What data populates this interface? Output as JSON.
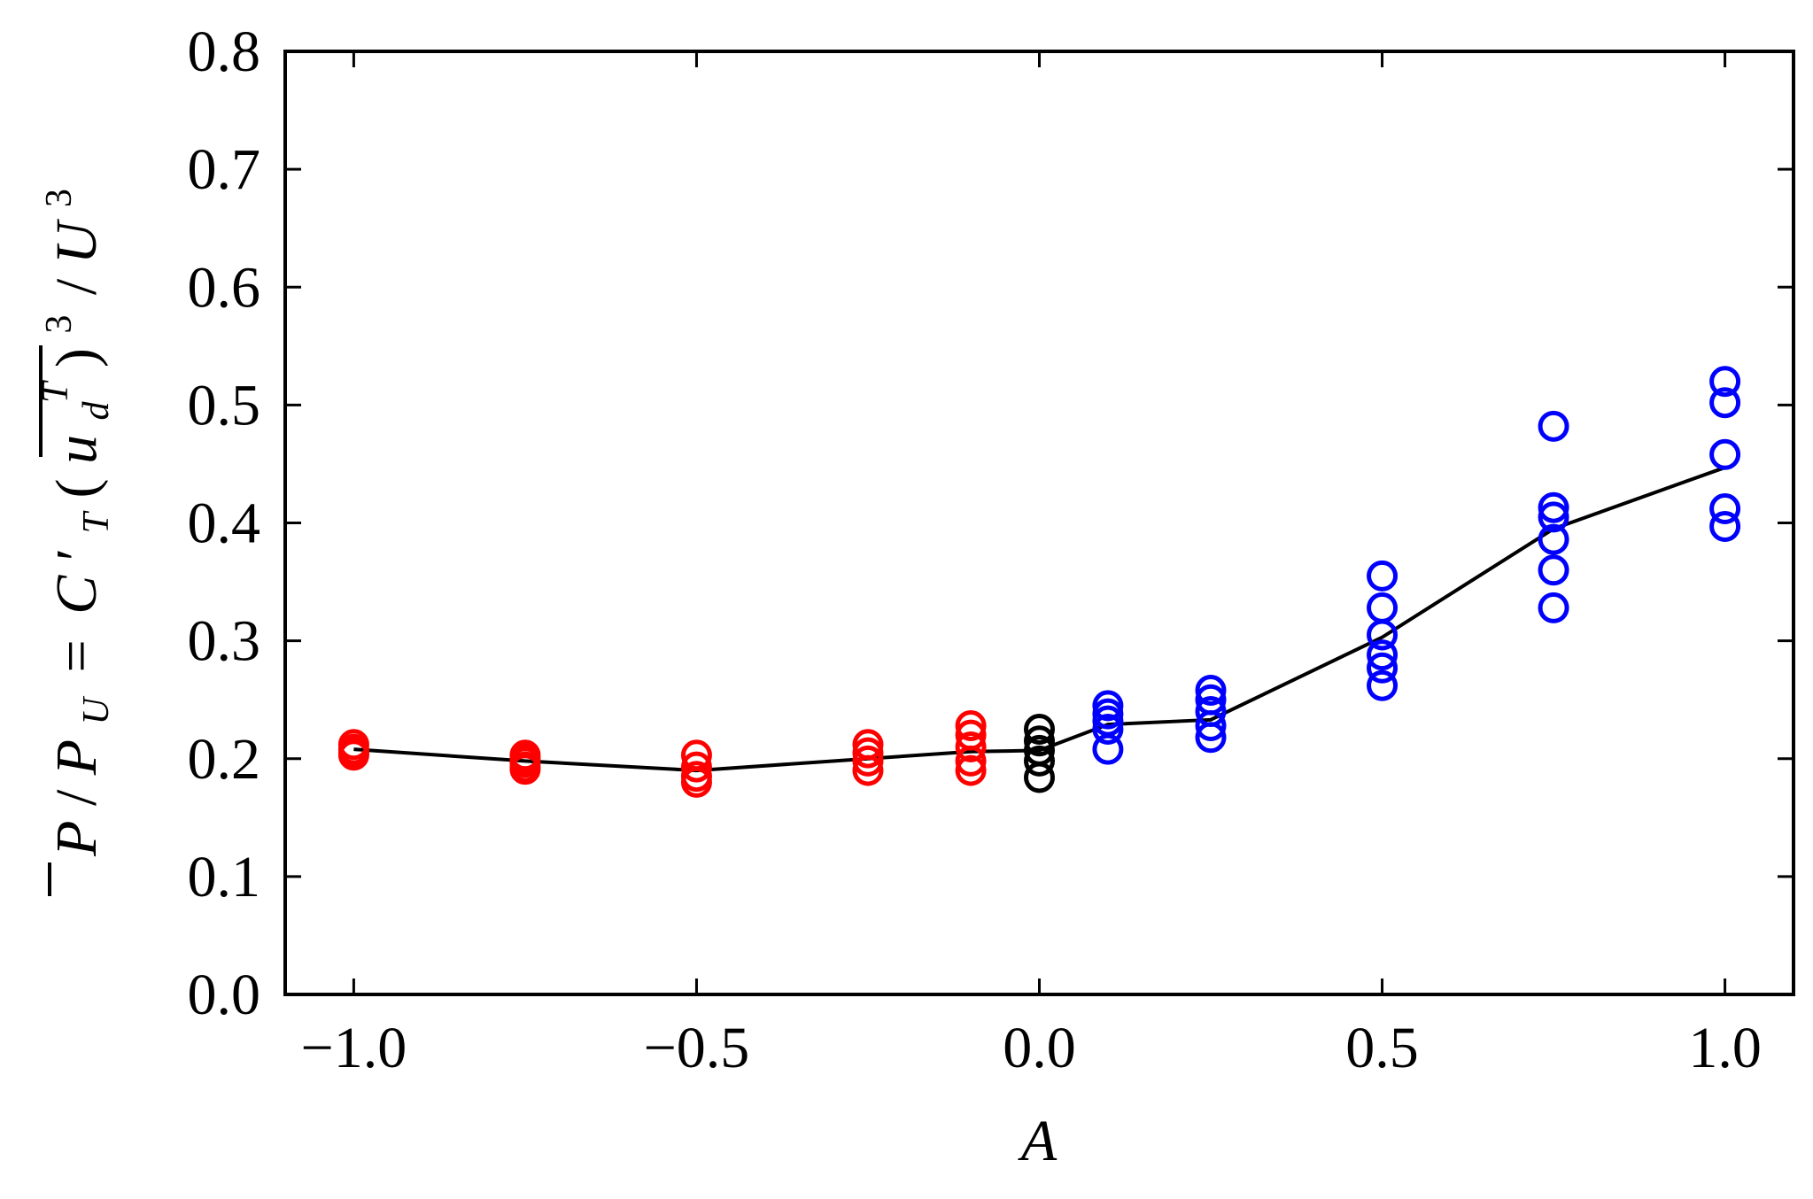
{
  "chart_data": {
    "type": "scatter",
    "title": "",
    "xlabel": "A",
    "ylabel": "P̄ / P_U = C′_T (u_d^T)³ / U³",
    "ylabel_parts": {
      "p": "P",
      "slash1": "/",
      "pu": "P",
      "pu_sub": "U",
      "equals": "=",
      "ct": "C",
      "prime": "′",
      "ct_sub": "T",
      "paren_open": "(",
      "u": "u",
      "u_sub": "d",
      "u_sup": "T",
      "paren_close": ")",
      "cube1": "3",
      "slash2": "/",
      "U": "U",
      "cube2": "3"
    },
    "xlim": [
      -1.1,
      1.1
    ],
    "ylim": [
      0.0,
      0.8
    ],
    "xticks": [
      -1.0,
      -0.5,
      0.0,
      0.5,
      1.0
    ],
    "xtick_labels": [
      "−1.0",
      "−0.5",
      "0.0",
      "0.5",
      "1.0"
    ],
    "yticks": [
      0.0,
      0.1,
      0.2,
      0.3,
      0.4,
      0.5,
      0.6,
      0.7,
      0.8
    ],
    "ytick_labels": [
      "0.0",
      "0.1",
      "0.2",
      "0.3",
      "0.4",
      "0.5",
      "0.6",
      "0.7",
      "0.8"
    ],
    "grid": false,
    "legend": "none",
    "colors": {
      "negative": "#ff0000",
      "zero": "#000000",
      "positive": "#0000ff",
      "line": "#000000"
    },
    "series": [
      {
        "marker": "open-circle",
        "color": "#ff0000",
        "points": [
          [
            -1.0,
            0.212
          ],
          [
            -1.0,
            0.208
          ],
          [
            -1.0,
            0.205
          ],
          [
            -1.0,
            0.203
          ],
          [
            -0.75,
            0.203
          ],
          [
            -0.75,
            0.2
          ],
          [
            -0.75,
            0.197
          ],
          [
            -0.75,
            0.193
          ],
          [
            -0.75,
            0.191
          ],
          [
            -0.5,
            0.203
          ],
          [
            -0.5,
            0.193
          ],
          [
            -0.5,
            0.185
          ],
          [
            -0.5,
            0.18
          ],
          [
            -0.25,
            0.212
          ],
          [
            -0.25,
            0.205
          ],
          [
            -0.25,
            0.198
          ],
          [
            -0.25,
            0.19
          ],
          [
            -0.1,
            0.228
          ],
          [
            -0.1,
            0.22
          ],
          [
            -0.1,
            0.21
          ],
          [
            -0.1,
            0.198
          ],
          [
            -0.1,
            0.19
          ]
        ]
      },
      {
        "marker": "open-circle",
        "color": "#000000",
        "points": [
          [
            0.0,
            0.225
          ],
          [
            0.0,
            0.215
          ],
          [
            0.0,
            0.207
          ],
          [
            0.0,
            0.198
          ],
          [
            0.0,
            0.184
          ]
        ]
      },
      {
        "marker": "open-circle",
        "color": "#0000ff",
        "points": [
          [
            0.1,
            0.245
          ],
          [
            0.1,
            0.238
          ],
          [
            0.1,
            0.232
          ],
          [
            0.1,
            0.225
          ],
          [
            0.1,
            0.208
          ],
          [
            0.25,
            0.258
          ],
          [
            0.25,
            0.25
          ],
          [
            0.25,
            0.24
          ],
          [
            0.25,
            0.228
          ],
          [
            0.25,
            0.218
          ],
          [
            0.5,
            0.355
          ],
          [
            0.5,
            0.328
          ],
          [
            0.5,
            0.305
          ],
          [
            0.5,
            0.288
          ],
          [
            0.5,
            0.277
          ],
          [
            0.5,
            0.262
          ],
          [
            0.75,
            0.482
          ],
          [
            0.75,
            0.413
          ],
          [
            0.75,
            0.405
          ],
          [
            0.75,
            0.386
          ],
          [
            0.75,
            0.36
          ],
          [
            0.75,
            0.328
          ],
          [
            1.0,
            0.52
          ],
          [
            1.0,
            0.502
          ],
          [
            1.0,
            0.458
          ],
          [
            1.0,
            0.412
          ],
          [
            1.0,
            0.397
          ]
        ]
      },
      {
        "marker": "line",
        "color": "#000000",
        "x": [
          -1.0,
          -0.75,
          -0.5,
          -0.25,
          -0.1,
          0.0,
          0.1,
          0.25,
          0.5,
          0.75,
          1.0
        ],
        "y": [
          0.208,
          0.198,
          0.19,
          0.2,
          0.206,
          0.207,
          0.229,
          0.233,
          0.303,
          0.395,
          0.447
        ]
      }
    ]
  }
}
